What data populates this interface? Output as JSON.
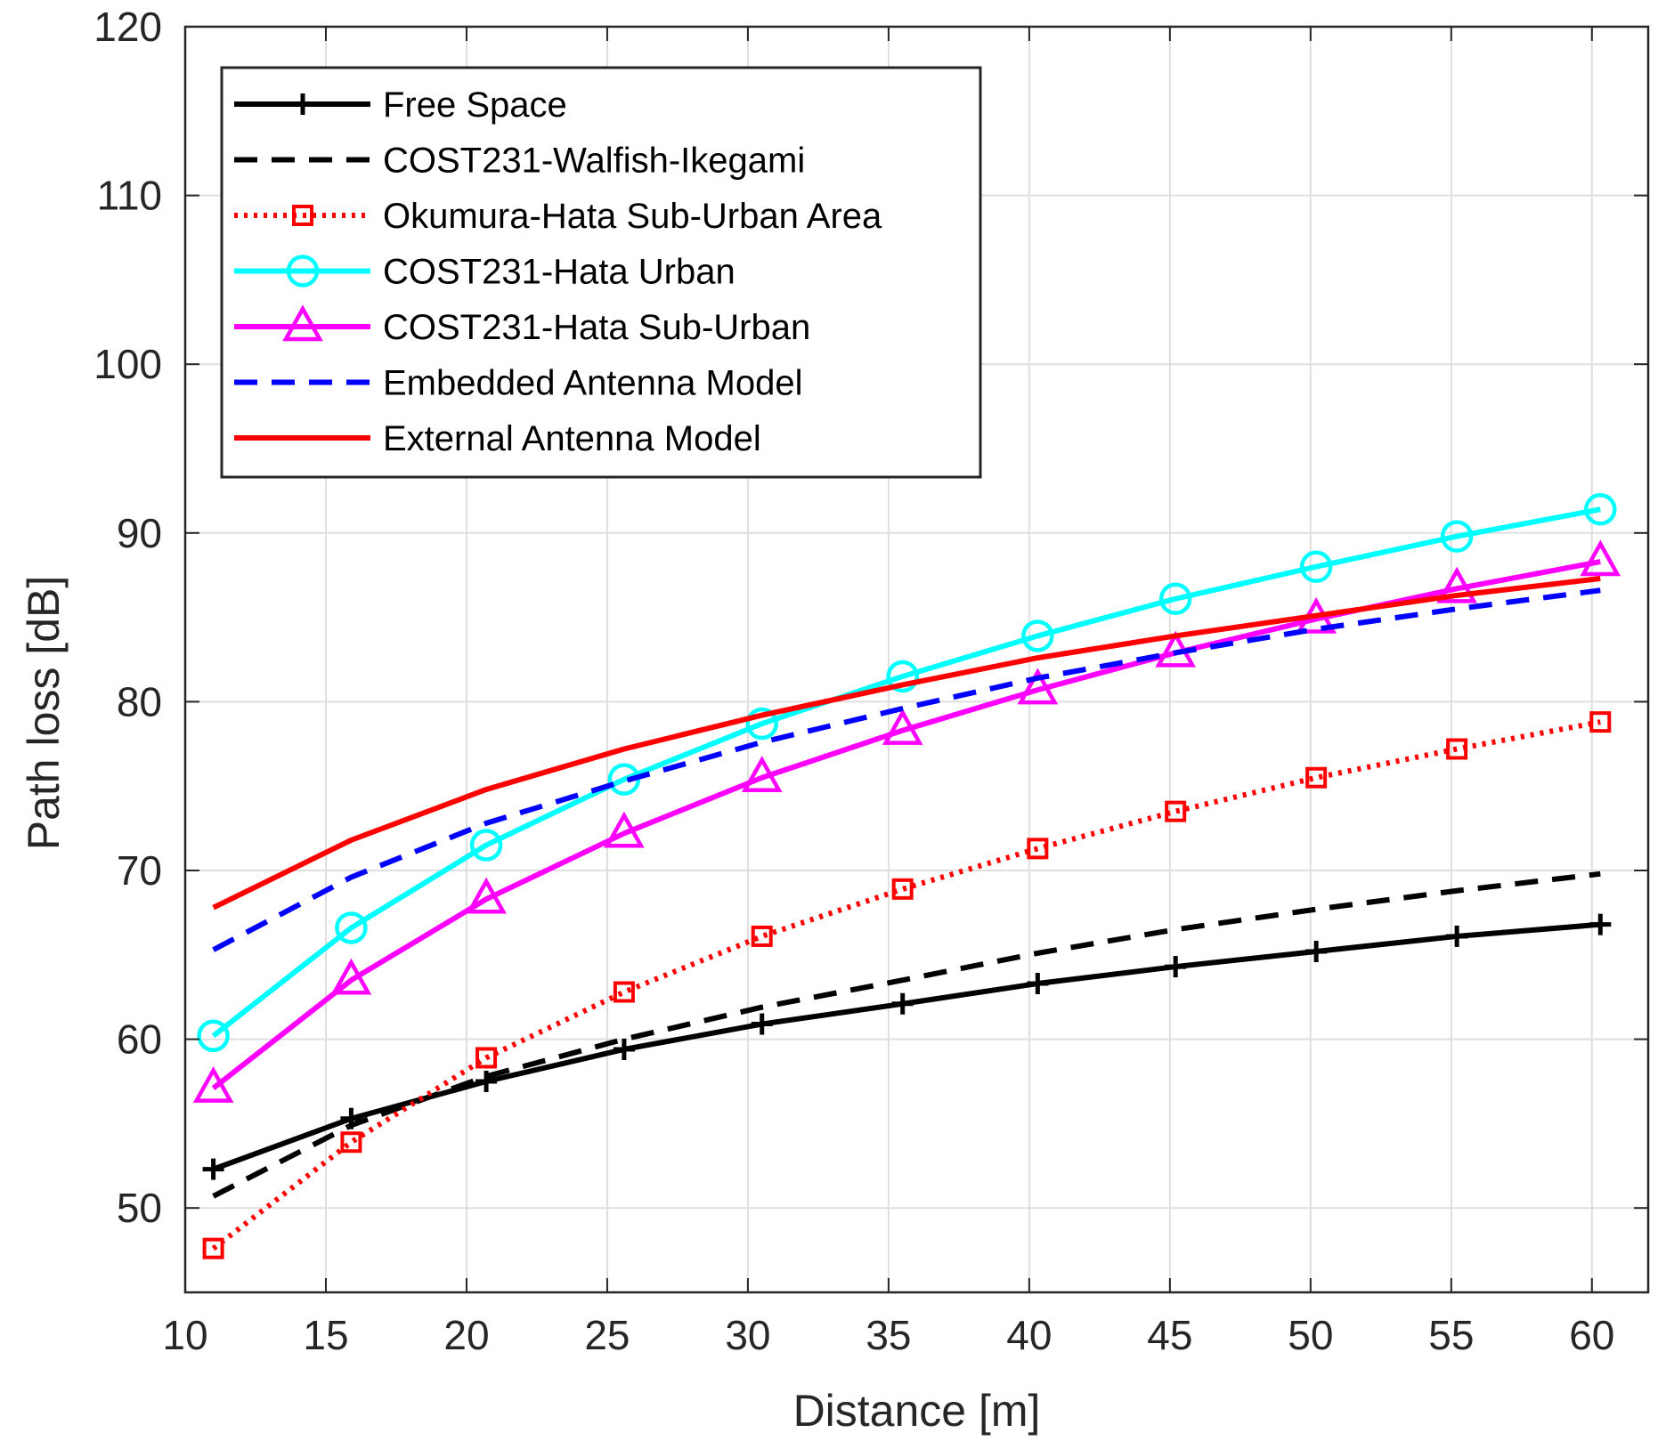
{
  "chart_data": {
    "type": "line",
    "title": "",
    "xlabel": "Distance [m]",
    "ylabel": "Path loss [dB]",
    "xlim": [
      10,
      62
    ],
    "ylim": [
      45,
      120
    ],
    "xticks": [
      10,
      15,
      20,
      25,
      30,
      35,
      40,
      45,
      50,
      55,
      60
    ],
    "yticks": [
      50,
      60,
      70,
      80,
      90,
      100,
      110,
      120
    ],
    "grid": true,
    "legend_position": "top-left",
    "x": [
      11,
      15.9,
      20.7,
      25.6,
      30.5,
      35.5,
      40.3,
      45.2,
      50.2,
      55.2,
      60.3
    ],
    "series": [
      {
        "name": "Free Space",
        "color": "#000000",
        "line": "solid",
        "marker": "plus",
        "values": [
          52.3,
          55.3,
          57.5,
          59.4,
          60.9,
          62.1,
          63.3,
          64.3,
          65.2,
          66.1,
          66.8
        ]
      },
      {
        "name": "COST231-Walfish-Ikegami",
        "color": "#000000",
        "line": "dashed",
        "marker": "none",
        "values": [
          50.7,
          54.9,
          57.8,
          60.0,
          61.9,
          63.5,
          65.1,
          66.5,
          67.7,
          68.8,
          69.8
        ]
      },
      {
        "name": "Okumura-Hata Sub-Urban Area",
        "color": "#ff0000",
        "line": "dotted",
        "marker": "square",
        "values": [
          47.6,
          53.9,
          58.9,
          62.8,
          66.1,
          68.9,
          71.3,
          73.5,
          75.5,
          77.2,
          78.8
        ]
      },
      {
        "name": "COST231-Hata Urban",
        "color": "#00ffff",
        "line": "solid",
        "marker": "circle",
        "values": [
          60.2,
          66.6,
          71.5,
          75.4,
          78.7,
          81.5,
          83.9,
          86.1,
          88.0,
          89.8,
          91.4
        ]
      },
      {
        "name": "COST231-Hata Sub-Urban",
        "color": "#ff00ff",
        "line": "solid",
        "marker": "triangle",
        "values": [
          57.1,
          63.5,
          68.3,
          72.2,
          75.5,
          78.3,
          80.7,
          82.9,
          84.9,
          86.7,
          88.3
        ]
      },
      {
        "name": "Embedded Antenna Model",
        "color": "#0000ff",
        "line": "dashed",
        "marker": "none",
        "values": [
          65.3,
          69.6,
          72.8,
          75.3,
          77.6,
          79.6,
          81.4,
          82.9,
          84.3,
          85.5,
          86.6
        ]
      },
      {
        "name": "External Antenna Model",
        "color": "#ff0000",
        "line": "solid",
        "marker": "none",
        "values": [
          67.8,
          71.8,
          74.8,
          77.2,
          79.2,
          81.0,
          82.6,
          83.9,
          85.1,
          86.3,
          87.3
        ]
      }
    ]
  }
}
